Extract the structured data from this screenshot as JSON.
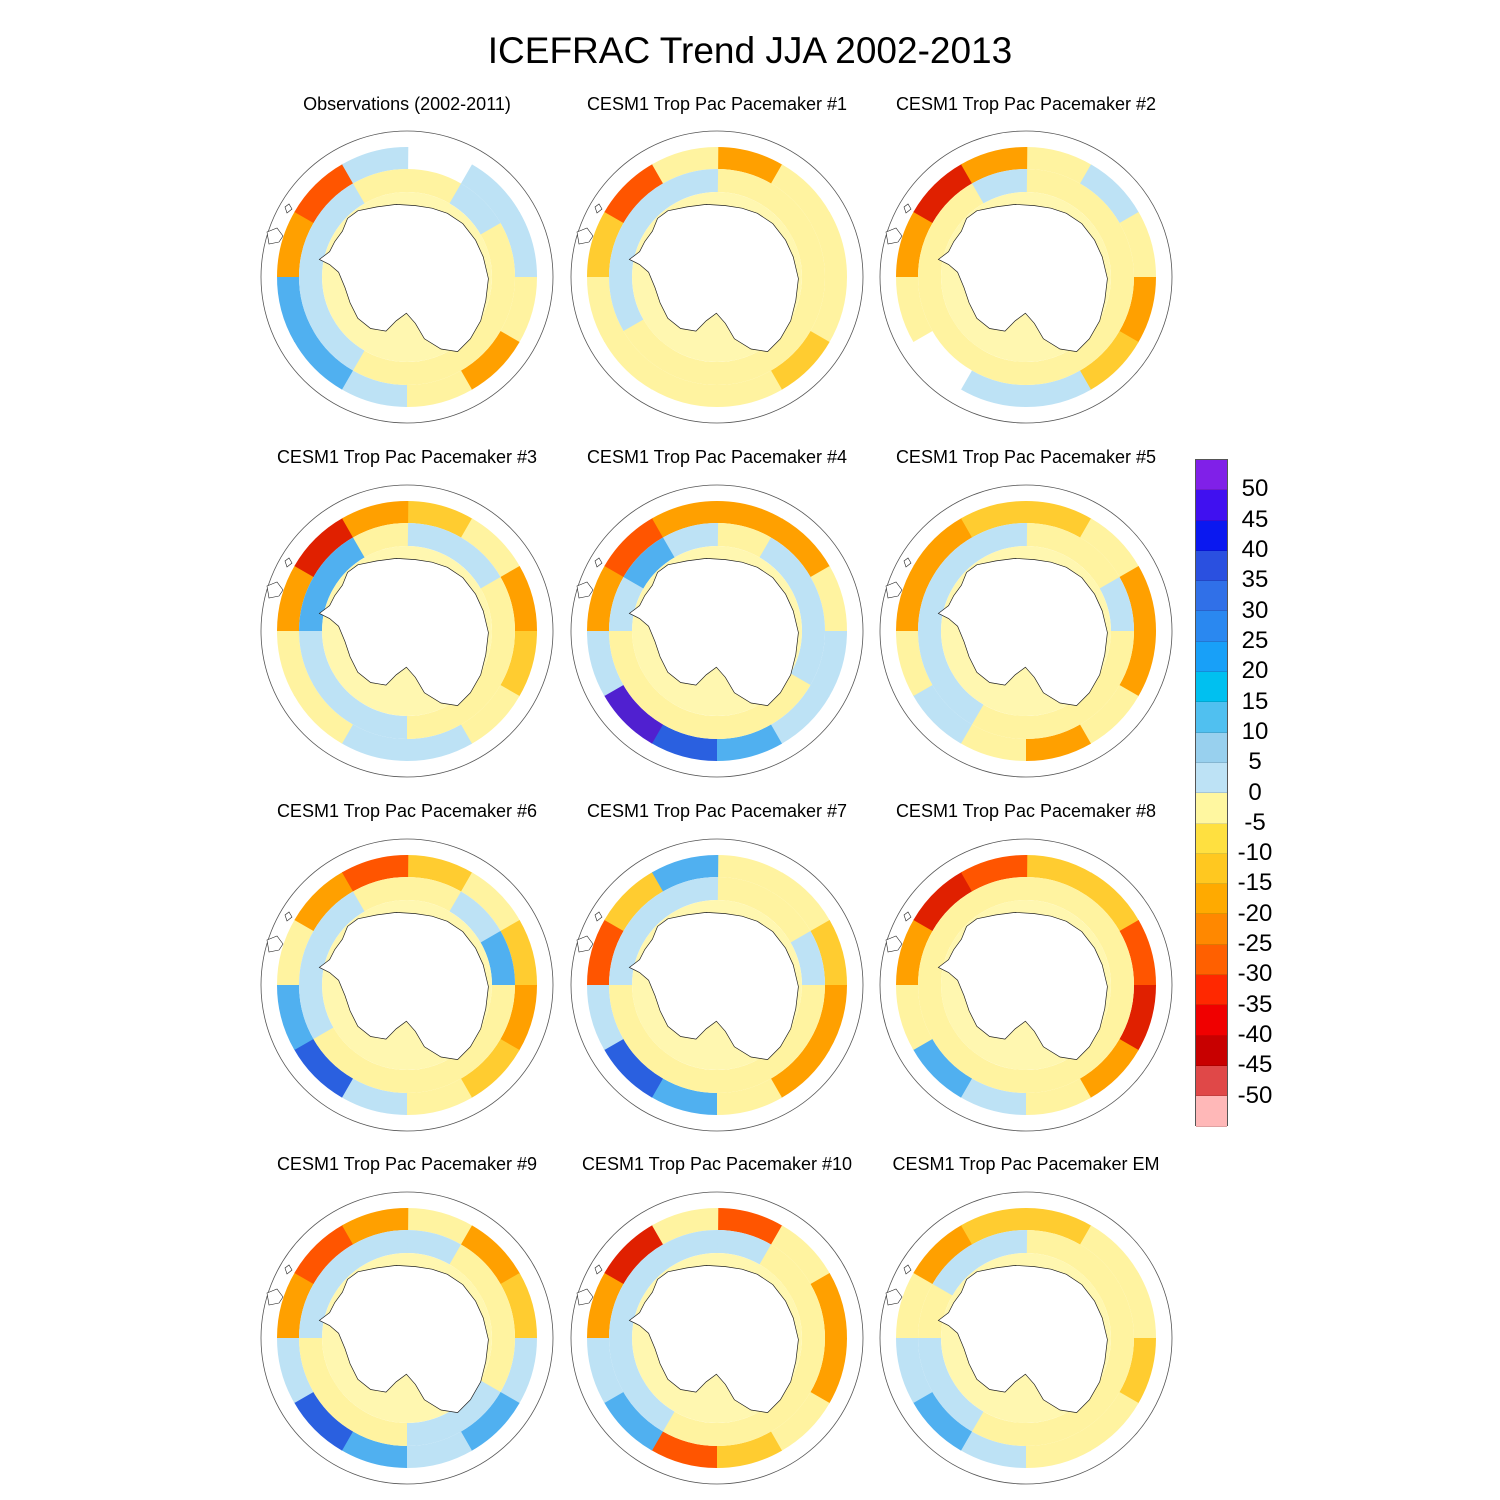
{
  "title": "ICEFRAC Trend JJA 2002-2013",
  "panels": [
    {
      "title": "Observations (2002-2011)",
      "pattern": [
        0,
        1,
        1,
        -1,
        -3,
        -1,
        1,
        2,
        2,
        -3,
        -4,
        1
      ],
      "continent": [
        0,
        1,
        0,
        0,
        0,
        0,
        0,
        1,
        1,
        1,
        1,
        0
      ]
    },
    {
      "title": "CESM1 Trop Pac Pacemaker #1",
      "pattern": [
        -3,
        -1,
        -1,
        -1,
        -2,
        -1,
        -1,
        -1,
        -1,
        -2,
        -4,
        -1
      ],
      "continent": [
        0,
        0,
        0,
        0,
        0,
        0,
        0,
        0,
        1,
        1,
        1,
        1
      ]
    },
    {
      "title": "CESM1 Trop Pac Pacemaker #2",
      "pattern": [
        -1,
        1,
        -1,
        -3,
        -2,
        1,
        1,
        0,
        -1,
        -3,
        -5,
        -3
      ],
      "continent": [
        0,
        0,
        0,
        0,
        0,
        0,
        0,
        0,
        0,
        0,
        0,
        1
      ]
    },
    {
      "title": "CESM1 Trop Pac Pacemaker #3",
      "pattern": [
        -2,
        -1,
        -3,
        -2,
        -1,
        1,
        1,
        -1,
        -1,
        -3,
        -5,
        -3
      ],
      "continent": [
        1,
        1,
        0,
        0,
        0,
        0,
        1,
        1,
        1,
        2,
        2,
        0
      ]
    },
    {
      "title": "CESM1 Trop Pac Pacemaker #4",
      "pattern": [
        -3,
        -3,
        -1,
        1,
        1,
        2,
        3,
        4,
        1,
        -3,
        -4,
        -3
      ],
      "continent": [
        0,
        1,
        1,
        1,
        0,
        0,
        0,
        0,
        0,
        1,
        2,
        1
      ]
    },
    {
      "title": "CESM1 Trop Pac Pacemaker #5",
      "pattern": [
        -2,
        -1,
        -3,
        -3,
        -1,
        -3,
        -1,
        1,
        -1,
        -3,
        -3,
        -2
      ],
      "continent": [
        0,
        0,
        1,
        0,
        0,
        0,
        0,
        1,
        1,
        1,
        1,
        1
      ]
    },
    {
      "title": "CESM1 Trop Pac Pacemaker #6",
      "pattern": [
        -2,
        -1,
        -2,
        -3,
        -2,
        -1,
        1,
        3,
        2,
        -1,
        -3,
        -4
      ],
      "continent": [
        0,
        1,
        2,
        0,
        0,
        0,
        0,
        0,
        1,
        1,
        1,
        0
      ]
    },
    {
      "title": "CESM1 Trop Pac Pacemaker #7",
      "pattern": [
        -1,
        -1,
        -2,
        -3,
        -3,
        -1,
        2,
        3,
        1,
        -4,
        -2,
        2
      ],
      "continent": [
        0,
        0,
        1,
        0,
        0,
        0,
        0,
        0,
        0,
        1,
        1,
        1
      ]
    },
    {
      "title": "CESM1 Trop Pac Pacemaker #8",
      "pattern": [
        -2,
        -2,
        -4,
        -5,
        -3,
        -1,
        1,
        2,
        -1,
        -3,
        -5,
        -4
      ],
      "continent": [
        0,
        0,
        0,
        0,
        0,
        0,
        0,
        0,
        0,
        0,
        0,
        0
      ]
    },
    {
      "title": "CESM1 Trop Pac Pacemaker #9",
      "pattern": [
        -1,
        -3,
        -2,
        1,
        2,
        1,
        2,
        3,
        1,
        -3,
        -4,
        -3
      ],
      "continent": [
        1,
        0,
        0,
        0,
        1,
        1,
        0,
        0,
        0,
        1,
        1,
        1
      ]
    },
    {
      "title": "CESM1 Trop Pac Pacemaker #10",
      "pattern": [
        -4,
        -1,
        -3,
        -3,
        -1,
        -2,
        -4,
        2,
        1,
        -3,
        -5,
        -1
      ],
      "continent": [
        1,
        0,
        0,
        0,
        0,
        0,
        0,
        1,
        1,
        1,
        1,
        1
      ]
    },
    {
      "title": "CESM1 Trop Pac Pacemaker EM",
      "pattern": [
        -2,
        -1,
        -1,
        -2,
        -1,
        -1,
        1,
        2,
        1,
        -1,
        -3,
        -2
      ],
      "continent": [
        0,
        0,
        0,
        0,
        0,
        0,
        0,
        1,
        1,
        0,
        1,
        1
      ]
    }
  ],
  "colorbar": {
    "labels": [
      "50",
      "45",
      "40",
      "35",
      "30",
      "25",
      "20",
      "15",
      "10",
      "5",
      "0",
      "-5",
      "-10",
      "-15",
      "-20",
      "-25",
      "-30",
      "-35",
      "-40",
      "-45",
      "-50"
    ],
    "colors": [
      "#8020e8",
      "#4010f0",
      "#0a18f0",
      "#2a50e0",
      "#3070e8",
      "#2a88f0",
      "#18a0f8",
      "#00c0f0",
      "#50c0f0",
      "#98d0ee",
      "#bde2f5",
      "#fff7a0",
      "#ffe040",
      "#ffc820",
      "#ffaa00",
      "#ff8800",
      "#ff6000",
      "#ff2800",
      "#f00000",
      "#c80000",
      "#e04848",
      "#ffb8b8"
    ]
  },
  "palette": {
    "-5": "#e02000",
    "-4": "#ff5500",
    "-3": "#ffa000",
    "-2": "#ffcc30",
    "-1": "#fff3a0",
    "0": "#ffffff",
    "1": "#bde2f5",
    "2": "#50b0f0",
    "3": "#2a60e0",
    "4": "#5020d0"
  }
}
